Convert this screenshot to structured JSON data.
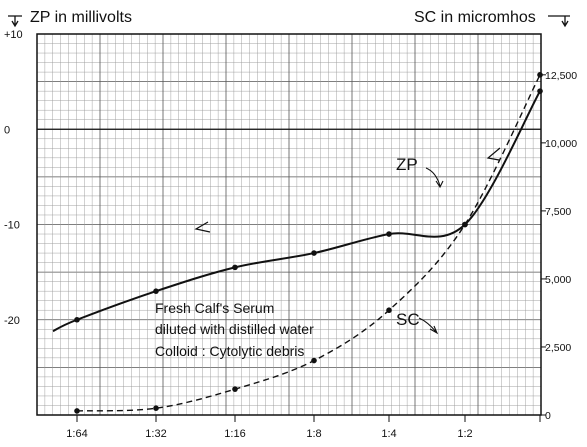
{
  "chart_data": {
    "type": "line",
    "left_axis_label": "ZP in millivolts",
    "right_axis_label": "SC in micromhos",
    "x_categories": [
      "1:64",
      "1:32",
      "1:16",
      "1:8",
      "1:4",
      "1:2",
      ""
    ],
    "left_ticks": [
      "+10",
      "0",
      "-10",
      "-20"
    ],
    "right_ticks": [
      "12,500",
      "10,000",
      "7,500",
      "5,000",
      "2,500",
      "0"
    ],
    "left_ylim": [
      -30,
      10
    ],
    "right_ylim": [
      0,
      14000
    ],
    "grid": true,
    "annotation": [
      "Fresh Calf's Serum",
      "diluted with distilled water",
      "Colloid : Cytolytic debris"
    ],
    "series": [
      {
        "name": "ZP",
        "axis": "left",
        "style": "solid",
        "points": [
          [
            0,
            -20
          ],
          [
            1,
            -17
          ],
          [
            2,
            -14.5
          ],
          [
            3,
            -13
          ],
          [
            4,
            -11
          ],
          [
            5,
            -10
          ],
          [
            6,
            4
          ]
        ]
      },
      {
        "name": "SC",
        "axis": "right",
        "style": "dashed",
        "points": [
          [
            0,
            150
          ],
          [
            1,
            250
          ],
          [
            2,
            950
          ],
          [
            3,
            2000
          ],
          [
            4,
            3850
          ],
          [
            5,
            7000
          ],
          [
            6,
            12500
          ]
        ]
      }
    ]
  }
}
